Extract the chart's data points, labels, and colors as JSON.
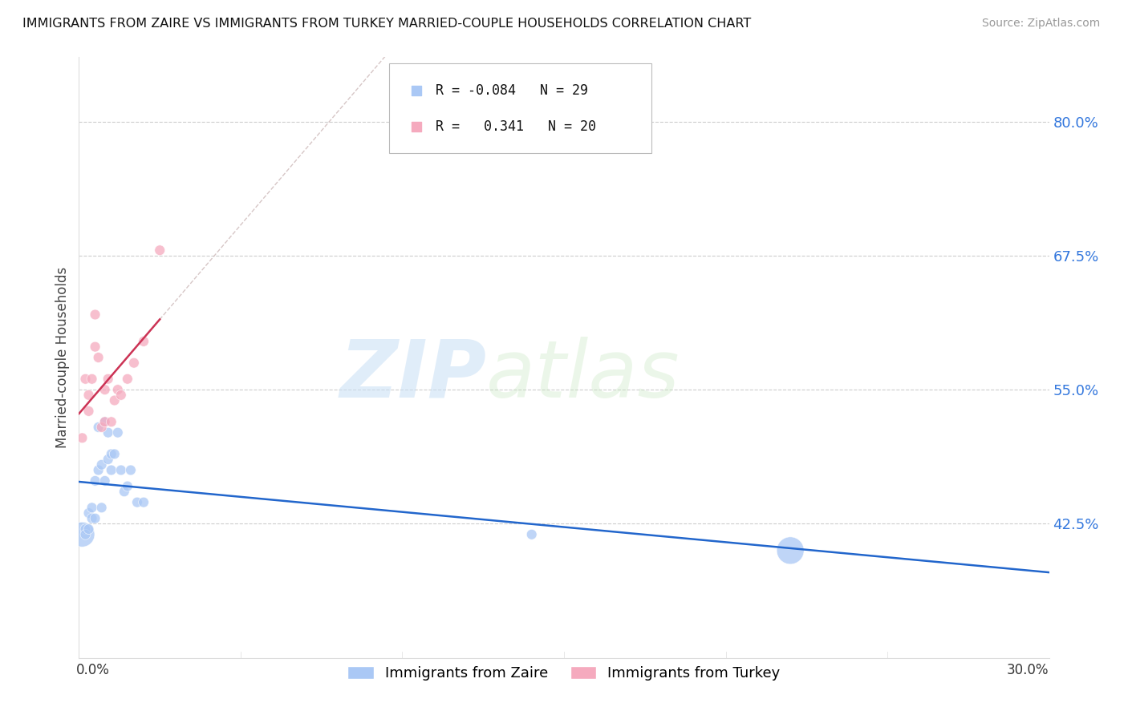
{
  "title": "IMMIGRANTS FROM ZAIRE VS IMMIGRANTS FROM TURKEY MARRIED-COUPLE HOUSEHOLDS CORRELATION CHART",
  "source": "Source: ZipAtlas.com",
  "ylabel": "Married-couple Households",
  "ytick_labels": [
    "42.5%",
    "55.0%",
    "67.5%",
    "80.0%"
  ],
  "ytick_vals": [
    0.425,
    0.55,
    0.675,
    0.8
  ],
  "zaire_x": [
    0.001,
    0.002,
    0.002,
    0.003,
    0.003,
    0.004,
    0.004,
    0.005,
    0.005,
    0.006,
    0.006,
    0.007,
    0.007,
    0.008,
    0.008,
    0.009,
    0.009,
    0.01,
    0.01,
    0.011,
    0.012,
    0.013,
    0.014,
    0.015,
    0.016,
    0.018,
    0.02,
    0.22,
    0.14
  ],
  "zaire_y": [
    0.415,
    0.42,
    0.415,
    0.435,
    0.42,
    0.44,
    0.43,
    0.465,
    0.43,
    0.475,
    0.515,
    0.48,
    0.44,
    0.52,
    0.465,
    0.485,
    0.51,
    0.475,
    0.49,
    0.49,
    0.51,
    0.475,
    0.455,
    0.46,
    0.475,
    0.445,
    0.445,
    0.4,
    0.415
  ],
  "zaire_sizes": [
    80,
    80,
    80,
    80,
    80,
    80,
    80,
    80,
    80,
    80,
    80,
    80,
    80,
    80,
    80,
    80,
    80,
    80,
    80,
    80,
    80,
    80,
    80,
    80,
    80,
    80,
    80,
    80,
    80
  ],
  "zaire_big_indices": [
    0,
    1,
    2,
    3
  ],
  "zaire_size_overrides": {
    "27": 500,
    "28": 80
  },
  "turkey_x": [
    0.001,
    0.002,
    0.003,
    0.003,
    0.004,
    0.005,
    0.005,
    0.006,
    0.007,
    0.008,
    0.008,
    0.009,
    0.01,
    0.011,
    0.012,
    0.013,
    0.015,
    0.017,
    0.02,
    0.025
  ],
  "turkey_y": [
    0.505,
    0.56,
    0.545,
    0.53,
    0.56,
    0.59,
    0.62,
    0.58,
    0.515,
    0.52,
    0.55,
    0.56,
    0.52,
    0.54,
    0.55,
    0.545,
    0.56,
    0.575,
    0.595,
    0.68
  ],
  "turkey_sizes": [
    80,
    80,
    80,
    80,
    80,
    80,
    80,
    80,
    80,
    80,
    80,
    80,
    80,
    80,
    80,
    80,
    80,
    80,
    80,
    80
  ],
  "zaire_color": "#aac8f5",
  "turkey_color": "#f5aabe",
  "zaire_line_color": "#2266cc",
  "turkey_line_color": "#cc3355",
  "dashed_line_color": "#ccb8b8",
  "xlim": [
    0.0,
    0.3
  ],
  "ylim": [
    0.3,
    0.86
  ],
  "background_color": "#ffffff",
  "grid_color": "#cccccc",
  "spine_color": "#dddddd"
}
